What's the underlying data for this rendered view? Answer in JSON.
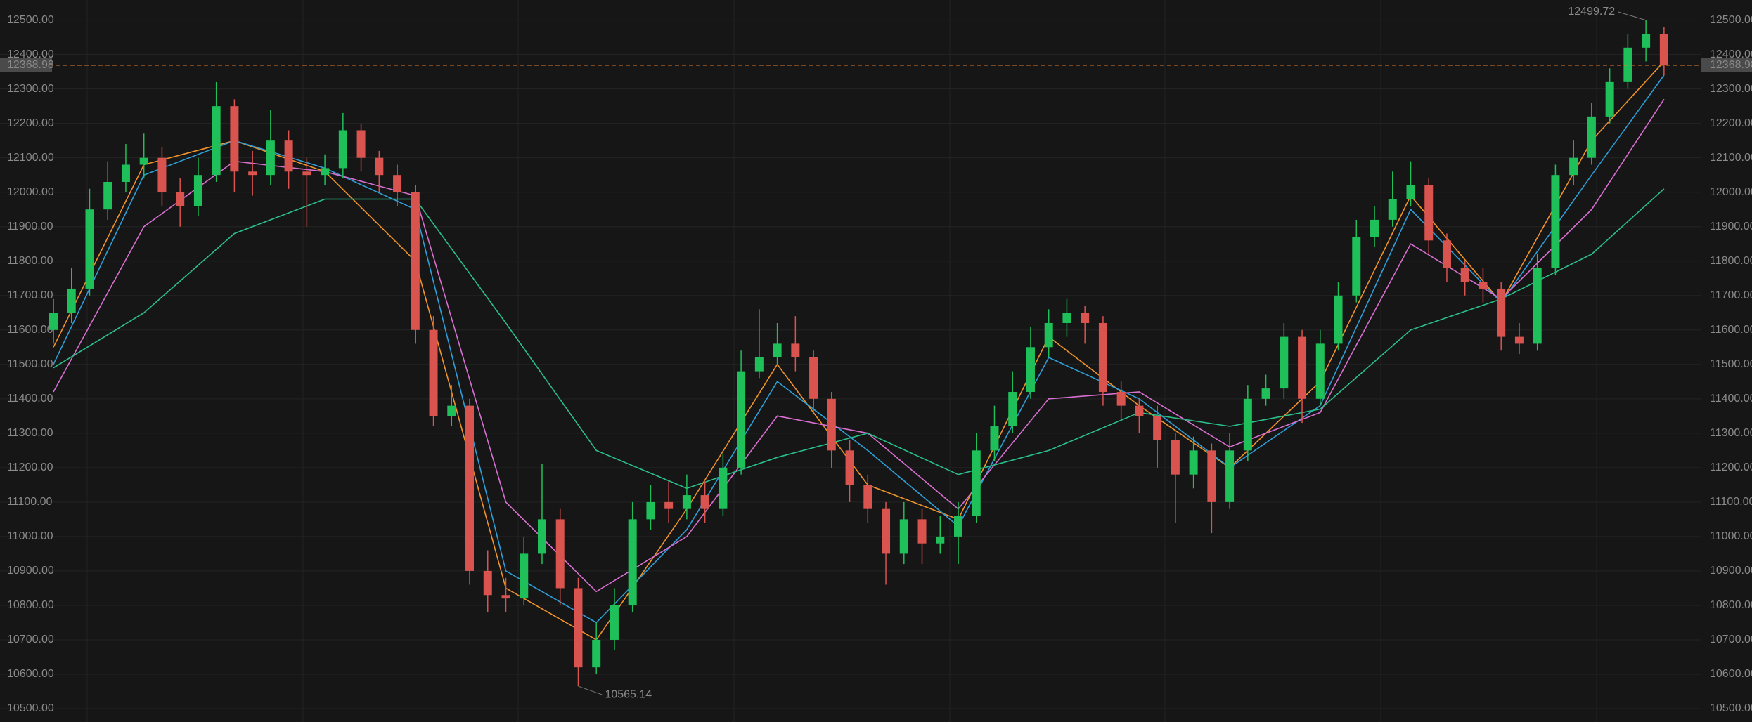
{
  "chart_data": {
    "type": "candlestick",
    "ylim": [
      10500,
      12500
    ],
    "yticks": [
      {
        "value": 10500,
        "label": "10500.00"
      },
      {
        "value": 10600,
        "label": "10600.00"
      },
      {
        "value": 10700,
        "label": "10700.00"
      },
      {
        "value": 10800,
        "label": "10800.00"
      },
      {
        "value": 10900,
        "label": "10900.00"
      },
      {
        "value": 11000,
        "label": "11000.00"
      },
      {
        "value": 11100,
        "label": "11100.00"
      },
      {
        "value": 11200,
        "label": "11200.00"
      },
      {
        "value": 11300,
        "label": "11300.00"
      },
      {
        "value": 11400,
        "label": "11400.00"
      },
      {
        "value": 11500,
        "label": "11500.00"
      },
      {
        "value": 11600,
        "label": "11600.00"
      },
      {
        "value": 11700,
        "label": "11700.00"
      },
      {
        "value": 11800,
        "label": "11800.00"
      },
      {
        "value": 11900,
        "label": "11900.00"
      },
      {
        "value": 12000,
        "label": "12000.00"
      },
      {
        "value": 12100,
        "label": "12100.00"
      },
      {
        "value": 12200,
        "label": "12200.00"
      },
      {
        "value": 12300,
        "label": "12300.00"
      },
      {
        "value": 12400,
        "label": "12400.00"
      },
      {
        "value": 12500,
        "label": "12500.00"
      }
    ],
    "grid": true,
    "up_color": "#1fc05a",
    "down_color": "#d9534f",
    "open": [
      11600,
      11650,
      11720,
      11950,
      12030,
      12080,
      12100,
      12000,
      11960,
      12050,
      12250,
      12060,
      12050,
      12150,
      12060,
      12050,
      12070,
      12180,
      12100,
      12050,
      12000,
      11600,
      11350,
      11380,
      10900,
      10830,
      10820,
      10950,
      11050,
      10850,
      10620,
      10700,
      10800,
      11050,
      11100,
      11080,
      11120,
      11080,
      11200,
      11480,
      11520,
      11560,
      11520,
      11400,
      11250,
      11150,
      11080,
      10950,
      11050,
      10980,
      11000,
      11060,
      11250,
      11320,
      11420,
      11550,
      11620,
      11650,
      11620,
      11420,
      11380,
      11350,
      11280,
      11180,
      11250,
      11100,
      11250,
      11400,
      11430,
      11580,
      11400,
      11560,
      11700,
      11870,
      11920,
      11980,
      12020,
      11860,
      11780,
      11740,
      11720,
      11580,
      11560,
      11780,
      12050,
      12100,
      12220,
      12320,
      12420,
      12460
    ],
    "high": [
      11690,
      11780,
      12010,
      12090,
      12140,
      12170,
      12130,
      12040,
      12100,
      12320,
      12270,
      12120,
      12240,
      12180,
      12100,
      12110,
      12230,
      12200,
      12120,
      12080,
      12020,
      11640,
      11440,
      11400,
      10960,
      10880,
      11000,
      11210,
      11080,
      10880,
      10750,
      10850,
      11100,
      11150,
      11160,
      11180,
      11160,
      11240,
      11540,
      11660,
      11620,
      11640,
      11540,
      11420,
      11280,
      11180,
      11100,
      11100,
      11080,
      11060,
      11100,
      11300,
      11380,
      11480,
      11610,
      11660,
      11690,
      11670,
      11640,
      11450,
      11400,
      11380,
      11300,
      11290,
      11270,
      11300,
      11440,
      11470,
      11620,
      11600,
      11600,
      11740,
      11920,
      11960,
      12060,
      12090,
      12040,
      11880,
      11800,
      11780,
      11740,
      11620,
      11820,
      12080,
      12150,
      12260,
      12360,
      12460,
      12499.72,
      12480
    ],
    "low": [
      11560,
      11620,
      11700,
      11920,
      12000,
      12040,
      11960,
      11900,
      11930,
      12030,
      12000,
      11990,
      12020,
      12010,
      11900,
      12020,
      12040,
      12060,
      12000,
      11960,
      11560,
      11320,
      11320,
      10860,
      10780,
      10780,
      10800,
      10920,
      10800,
      10565.14,
      10600,
      10670,
      10780,
      11020,
      11040,
      11050,
      11040,
      11060,
      11180,
      11460,
      11500,
      11480,
      11360,
      11200,
      11100,
      11040,
      10860,
      10920,
      10920,
      10950,
      10920,
      11040,
      11220,
      11300,
      11400,
      11520,
      11580,
      11560,
      11380,
      11340,
      11300,
      11200,
      11040,
      11140,
      11010,
      11080,
      11220,
      11380,
      11400,
      11330,
      11380,
      11540,
      11680,
      11840,
      11900,
      11960,
      11820,
      11740,
      11700,
      11680,
      11540,
      11530,
      11540,
      11760,
      12020,
      12080,
      12200,
      12300,
      12380,
      12340
    ],
    "close": [
      11650,
      11720,
      11950,
      12030,
      12080,
      12100,
      12000,
      11960,
      12050,
      12250,
      12060,
      12050,
      12150,
      12060,
      12050,
      12070,
      12180,
      12100,
      12050,
      12000,
      11600,
      11350,
      11380,
      10900,
      10830,
      10820,
      10950,
      11050,
      10850,
      10620,
      10700,
      10800,
      11050,
      11100,
      11080,
      11120,
      11080,
      11200,
      11480,
      11520,
      11560,
      11520,
      11400,
      11250,
      11150,
      11080,
      10950,
      11050,
      10980,
      11000,
      11060,
      11250,
      11320,
      11420,
      11550,
      11620,
      11650,
      11620,
      11420,
      11380,
      11350,
      11280,
      11180,
      11250,
      11100,
      11250,
      11400,
      11430,
      11580,
      11400,
      11560,
      11700,
      11870,
      11920,
      11980,
      12020,
      11860,
      11780,
      11740,
      11720,
      11580,
      11560,
      11780,
      12050,
      12100,
      12220,
      12320,
      12420,
      12460,
      12368.98
    ],
    "ma_series": [
      {
        "color": "#f0932b",
        "x": [
          0,
          5,
          10,
          15,
          20,
          25,
          30,
          35,
          40,
          45,
          50,
          55,
          60,
          65,
          70,
          75,
          80,
          85,
          89
        ],
        "values": [
          11550,
          12080,
          12150,
          12060,
          11800,
          10850,
          10700,
          11080,
          11500,
          11150,
          11050,
          11580,
          11380,
          11200,
          11450,
          11990,
          11680,
          12150,
          12380
        ]
      },
      {
        "color": "#2e9fd8",
        "x": [
          0,
          5,
          10,
          15,
          20,
          25,
          30,
          35,
          40,
          45,
          50,
          55,
          60,
          65,
          70,
          75,
          80,
          85,
          89
        ],
        "values": [
          11500,
          12050,
          12150,
          12070,
          11950,
          10900,
          10750,
          11020,
          11450,
          11250,
          11030,
          11520,
          11400,
          11200,
          11380,
          11950,
          11680,
          12050,
          12340
        ]
      },
      {
        "color": "#d96fd1",
        "x": [
          0,
          5,
          10,
          15,
          20,
          25,
          30,
          35,
          40,
          45,
          50,
          55,
          60,
          65,
          70,
          75,
          80,
          85,
          89
        ],
        "values": [
          11420,
          11900,
          12090,
          12060,
          11990,
          11100,
          10840,
          11000,
          11350,
          11300,
          11080,
          11400,
          11420,
          11260,
          11360,
          11850,
          11690,
          11950,
          12270
        ]
      },
      {
        "color": "#2bbf8a",
        "x": [
          0,
          5,
          10,
          15,
          20,
          25,
          30,
          35,
          40,
          45,
          50,
          55,
          60,
          65,
          70,
          75,
          80,
          85,
          89
        ],
        "values": [
          11490,
          11650,
          11880,
          11980,
          11980,
          11620,
          11250,
          11140,
          11230,
          11300,
          11180,
          11250,
          11360,
          11320,
          11370,
          11600,
          11690,
          11820,
          12010
        ]
      }
    ],
    "last_price": 12368.98,
    "last_price_color": "#e07b2a",
    "high_marker": 12499.72,
    "low_marker": 10565.14
  }
}
